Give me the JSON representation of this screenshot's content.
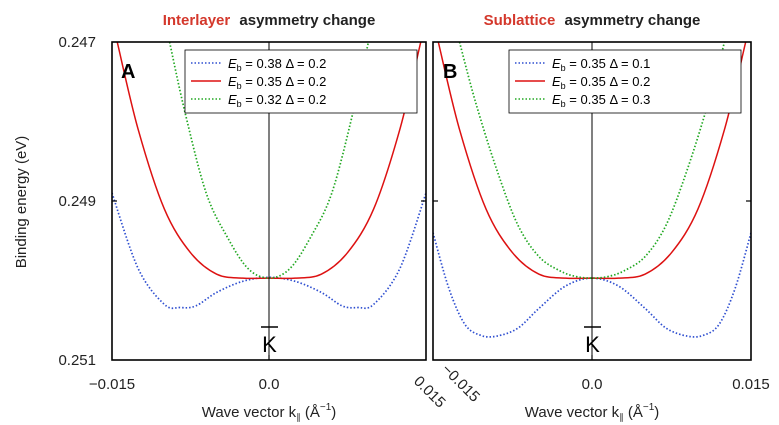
{
  "chart_data": [
    {
      "type": "line",
      "panel_label": "A",
      "title_highlight": "Interlayer",
      "title_rest": "asymmetry change",
      "xlabel": "Wave vector k",
      "xlabel_sub": "∥",
      "xlabel_unit_open": " (Å",
      "xlabel_unit_sup": "−1",
      "xlabel_unit_close": ")",
      "ylabel": "Binding energy (eV)",
      "point_label": "K",
      "xlim": [
        -0.015,
        0.015
      ],
      "ylim": [
        0.251,
        0.247
      ],
      "x_ticks": [
        "−0.015",
        "0.0",
        "0.015"
      ],
      "y_ticks": [
        "0.247",
        "0.249",
        "0.251"
      ],
      "legend_placement": "top-right",
      "series": [
        {
          "sym": "E",
          "sub": "b",
          "eq": " = ",
          "e_val": "0.38",
          "delta": " Δ = ",
          "d_val": "0.2",
          "color": "#2f4fd0",
          "dash": "1.5,2",
          "x": [
            -0.015,
            -0.0125,
            -0.01,
            -0.0085,
            -0.007,
            -0.005,
            -0.0025,
            0.0,
            0.0025,
            0.005,
            0.007,
            0.0085,
            0.01,
            0.0125,
            0.015
          ],
          "y": [
            0.2489,
            0.24985,
            0.2503,
            0.25034,
            0.25032,
            0.25015,
            0.25001,
            0.24996,
            0.25001,
            0.25015,
            0.25032,
            0.25034,
            0.2503,
            0.24985,
            0.2489
          ]
        },
        {
          "sym": "E",
          "sub": "b",
          "eq": " = ",
          "e_val": "0.35",
          "delta": " Δ = ",
          "d_val": "0.2",
          "color": "#dd1111",
          "dash": "",
          "x": [
            -0.0145,
            -0.0125,
            -0.01,
            -0.0075,
            -0.005,
            -0.0025,
            0.0,
            0.0025,
            0.005,
            0.0075,
            0.01,
            0.0125,
            0.0145
          ],
          "y": [
            0.247,
            0.2481,
            0.2491,
            0.24965,
            0.24992,
            0.24997,
            0.24997,
            0.24997,
            0.24992,
            0.24965,
            0.2491,
            0.2481,
            0.247
          ]
        },
        {
          "sym": "E",
          "sub": "b",
          "eq": " = ",
          "e_val": "0.32",
          "delta": " Δ = ",
          "d_val": "0.2",
          "color": "#22a822",
          "dash": "1.5,2",
          "x": [
            -0.0095,
            -0.008,
            -0.006,
            -0.004,
            -0.002,
            0.0,
            0.002,
            0.004,
            0.006,
            0.008,
            0.0095
          ],
          "y": [
            0.247,
            0.2479,
            0.2489,
            0.24945,
            0.24985,
            0.24997,
            0.24985,
            0.24945,
            0.2489,
            0.2479,
            0.247
          ]
        }
      ]
    },
    {
      "type": "line",
      "panel_label": "B",
      "title_highlight": "Sublattice",
      "title_rest": "asymmetry change",
      "xlabel": "Wave vector k",
      "xlabel_sub": "∥",
      "xlabel_unit_open": " (Å",
      "xlabel_unit_sup": "−1",
      "xlabel_unit_close": ")",
      "point_label": "K",
      "xlim": [
        -0.015,
        0.015
      ],
      "ylim": [
        0.251,
        0.247
      ],
      "x_ticks": [
        "−0.015",
        "0.0",
        "0.015"
      ],
      "legend_placement": "top-right",
      "series": [
        {
          "sym": "E",
          "sub": "b",
          "eq": " = ",
          "e_val": "0.35",
          "delta": " Δ = ",
          "d_val": "0.1",
          "color": "#2f4fd0",
          "dash": "1.5,2",
          "x": [
            -0.015,
            -0.0135,
            -0.012,
            -0.0105,
            -0.009,
            -0.007,
            -0.005,
            -0.0025,
            0.0,
            0.0025,
            0.005,
            0.007,
            0.009,
            0.0105,
            0.012,
            0.0135,
            0.015
          ],
          "y": [
            0.2494,
            0.2501,
            0.25055,
            0.25069,
            0.2507,
            0.2506,
            0.25035,
            0.25007,
            0.24997,
            0.25007,
            0.25035,
            0.2506,
            0.2507,
            0.25069,
            0.25055,
            0.2501,
            0.2494
          ]
        },
        {
          "sym": "E",
          "sub": "b",
          "eq": " = ",
          "e_val": "0.35",
          "delta": " Δ = ",
          "d_val": "0.2",
          "color": "#dd1111",
          "dash": "",
          "x": [
            -0.0145,
            -0.0125,
            -0.01,
            -0.0075,
            -0.005,
            -0.0025,
            0.0,
            0.0025,
            0.005,
            0.0075,
            0.01,
            0.0125,
            0.0145
          ],
          "y": [
            0.247,
            0.2481,
            0.2491,
            0.24965,
            0.24992,
            0.24997,
            0.24997,
            0.24997,
            0.24992,
            0.24965,
            0.2491,
            0.2481,
            0.247
          ]
        },
        {
          "sym": "E",
          "sub": "b",
          "eq": " = ",
          "e_val": "0.35",
          "delta": " Δ = ",
          "d_val": "0.3",
          "color": "#22a822",
          "dash": "1.5,2",
          "x": [
            -0.0125,
            -0.011,
            -0.009,
            -0.007,
            -0.005,
            -0.003,
            -0.0015,
            0.0,
            0.0015,
            0.003,
            0.005,
            0.007,
            0.009,
            0.011,
            0.0125
          ],
          "y": [
            0.247,
            0.24775,
            0.2486,
            0.2493,
            0.2497,
            0.24988,
            0.24995,
            0.24997,
            0.24995,
            0.24988,
            0.2497,
            0.2493,
            0.2486,
            0.24775,
            0.247
          ]
        }
      ]
    }
  ]
}
